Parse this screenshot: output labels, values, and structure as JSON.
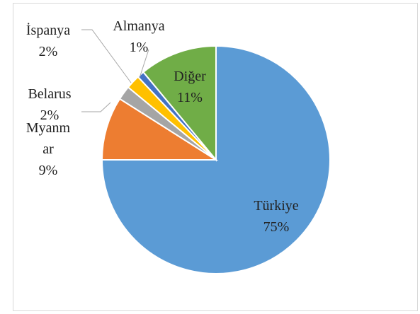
{
  "chart_data": {
    "type": "pie",
    "categories": [
      "Türkiye",
      "Myanmar",
      "Belarus",
      "İspanya",
      "Almanya",
      "Diğer"
    ],
    "values": [
      75,
      9,
      2,
      2,
      1,
      11
    ],
    "value_labels": [
      "75%",
      "9%",
      "2%",
      "2%",
      "1%",
      "11%"
    ],
    "colors": [
      "#5b9bd5",
      "#ed7d31",
      "#a5a5a5",
      "#ffc000",
      "#4472c4",
      "#70ad47"
    ]
  }
}
